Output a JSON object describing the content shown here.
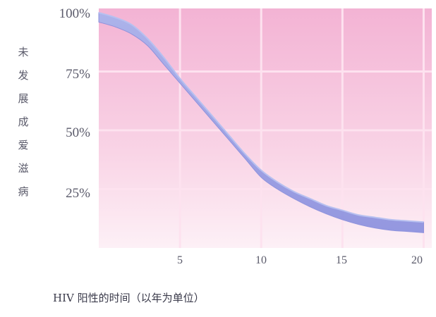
{
  "chart_data": {
    "type": "area",
    "title": "",
    "xlabel": "HIV 阳性的时间（以年为单位）",
    "ylabel": "未发展成爱滋病",
    "x_ticks": [
      5,
      10,
      15,
      20
    ],
    "y_ticks": [
      "25%",
      "50%",
      "75%",
      "100%"
    ],
    "xlim": [
      0,
      20.5
    ],
    "ylim": [
      0,
      100
    ],
    "grid": true,
    "series": [
      {
        "name": "",
        "x": [
          0,
          1,
          2,
          3,
          4,
          5,
          6,
          7,
          8,
          9,
          10,
          11,
          12,
          13,
          14,
          15,
          16,
          17,
          18,
          19,
          20
        ],
        "upper": [
          100,
          98,
          95,
          89,
          81,
          72,
          64,
          56,
          48,
          40,
          33,
          28,
          24,
          21,
          18,
          16,
          14,
          13,
          12,
          11.5,
          11
        ],
        "lower": [
          96,
          94,
          91,
          86,
          78,
          70,
          62,
          54,
          46,
          38,
          30,
          25,
          21,
          17.5,
          14.5,
          12,
          10,
          8.5,
          7.5,
          7,
          6.5
        ]
      }
    ],
    "colors": {
      "background": "#f6c8e0",
      "band": "#9da8e6",
      "band_edge": "#8a8fdc",
      "grid": "#fde2ef"
    }
  }
}
